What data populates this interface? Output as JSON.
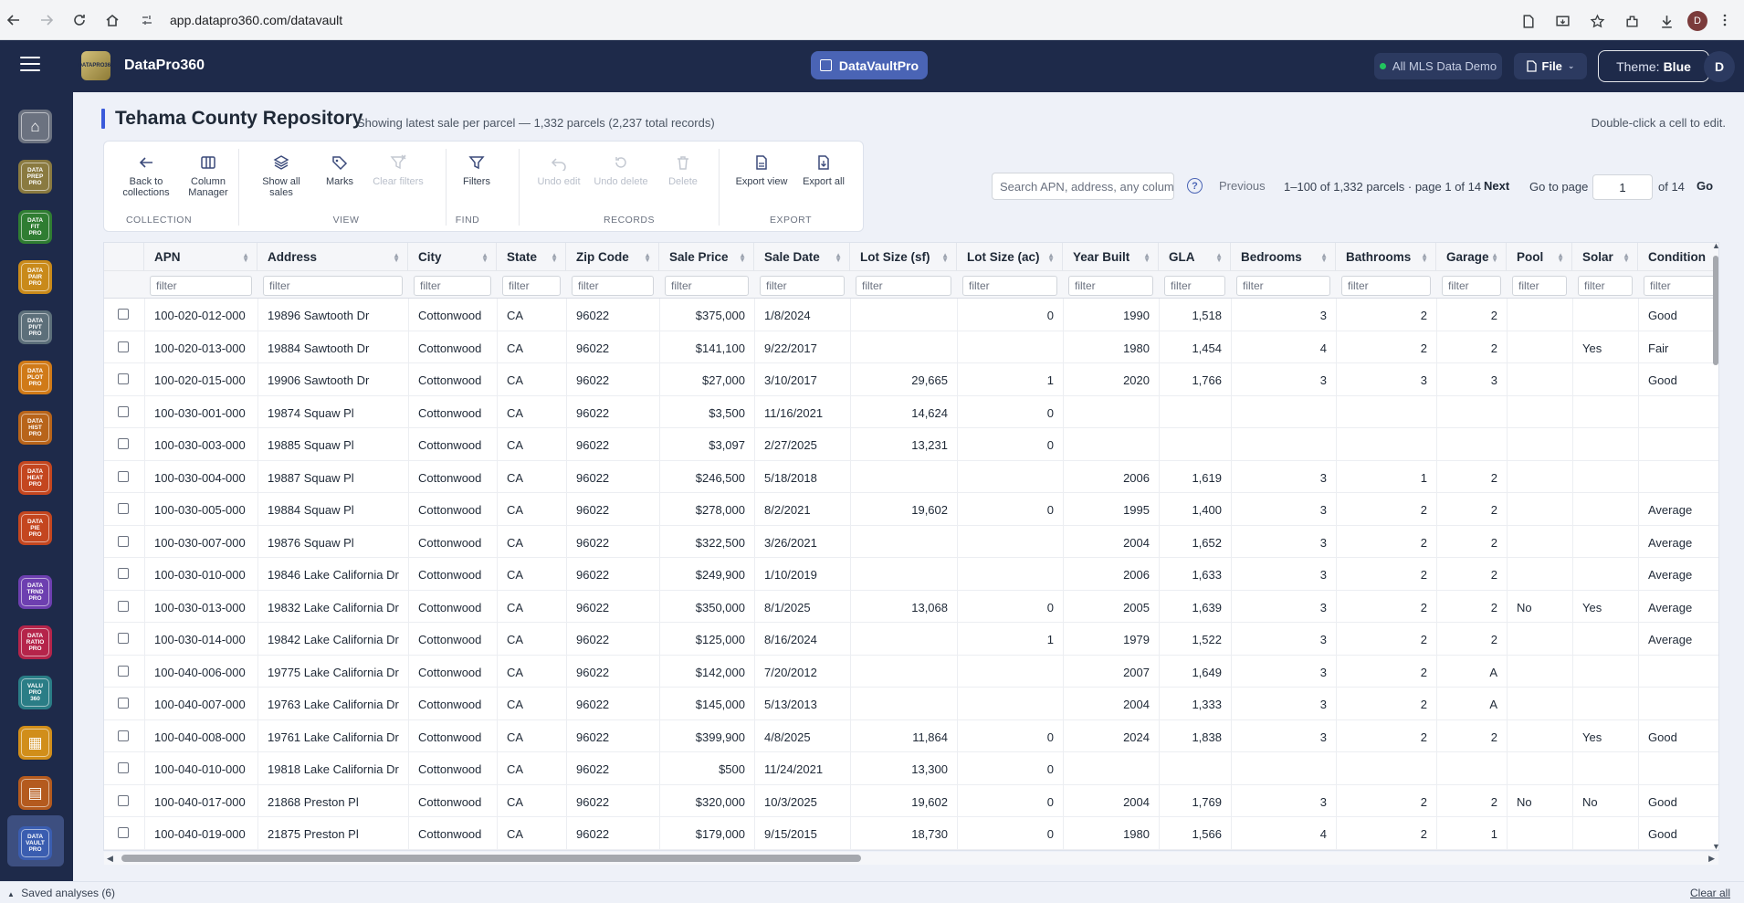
{
  "browser": {
    "url": "app.datapro360.com/datavault",
    "profile_initial": "D"
  },
  "header": {
    "brand_logo_text": "DATA PRO 360",
    "brand_name": "DataPro360",
    "center_pill": "DataVaultPro",
    "mls_status": "All MLS Data Demo",
    "file_menu": "File",
    "theme_label": "Theme:",
    "theme_value": "Blue",
    "user_initial": "D"
  },
  "sidebar": {
    "items": [
      {
        "name": "home",
        "lines": [
          "⌂"
        ],
        "bg": "#6b7280",
        "fg": "#ffffff"
      },
      {
        "name": "data-prep-pro",
        "lines": [
          "DATA",
          "PREP",
          "PRO"
        ],
        "bg": "#8a7a40",
        "fg": "#ffffff"
      },
      {
        "name": "data-fit-pro",
        "lines": [
          "DATA",
          "FIT",
          "PRO"
        ],
        "bg": "#2f7d32",
        "fg": "#ffffff"
      },
      {
        "name": "data-pair-pro",
        "lines": [
          "DATA",
          "PAIR",
          "PRO"
        ],
        "bg": "#c98a1a",
        "fg": "#ffffff"
      },
      {
        "name": "data-pivt-pro",
        "lines": [
          "DATA",
          "PIVT",
          "PRO"
        ],
        "bg": "#5c6f7a",
        "fg": "#ffffff"
      },
      {
        "name": "data-plot-pro",
        "lines": [
          "DATA",
          "PLOT",
          "PRO"
        ],
        "bg": "#d07a18",
        "fg": "#ffffff"
      },
      {
        "name": "data-hist-pro",
        "lines": [
          "DATA",
          "HIST",
          "PRO"
        ],
        "bg": "#b8641a",
        "fg": "#ffffff"
      },
      {
        "name": "data-heat-pro",
        "lines": [
          "DATA",
          "HEAT",
          "PRO"
        ],
        "bg": "#c4461f",
        "fg": "#ffffff"
      },
      {
        "name": "data-pie-pro",
        "lines": [
          "DATA",
          "PIE",
          "PRO"
        ],
        "bg": "#c4461f",
        "fg": "#ffffff"
      },
      {
        "name": "data-trnd-pro",
        "lines": [
          "DATA",
          "TRND",
          "PRO"
        ],
        "bg": "#6d3fb0",
        "fg": "#ffffff"
      },
      {
        "name": "data-ratio-pro",
        "lines": [
          "DATA",
          "RATIO",
          "PRO"
        ],
        "bg": "#b5244a",
        "fg": "#ffffff"
      },
      {
        "name": "valu-pro-360",
        "lines": [
          "VALU",
          "PRO",
          "360"
        ],
        "bg": "#2a7d86",
        "fg": "#ffffff"
      },
      {
        "name": "grid-app",
        "lines": [
          "▦"
        ],
        "bg": "#d18e1a",
        "fg": "#ffffff"
      },
      {
        "name": "report-app",
        "lines": [
          "▤"
        ],
        "bg": "#b45a1e",
        "fg": "#ffffff"
      },
      {
        "name": "data-vault-pro",
        "lines": [
          "DATA",
          "VAULT",
          "PRO"
        ],
        "bg": "#3a5db0",
        "fg": "#ffffff"
      }
    ]
  },
  "page": {
    "title": "Tehama County Repository",
    "subtitle": "Showing latest sale per parcel — 1,332 parcels (2,237 total records)",
    "hint": "Double-click a cell to edit."
  },
  "toolbar": {
    "groups": [
      {
        "label": "COLLECTION",
        "buttons": [
          {
            "id": "back",
            "icon": "arrow-left-icon",
            "label": "Back to collections",
            "disabled": false
          },
          {
            "id": "columns",
            "icon": "columns-icon",
            "label": "Column Manager",
            "disabled": false
          }
        ]
      },
      {
        "label": "VIEW",
        "buttons": [
          {
            "id": "showall",
            "icon": "layers-icon",
            "label": "Show all sales",
            "disabled": false
          },
          {
            "id": "marks",
            "icon": "tag-icon",
            "label": "Marks",
            "disabled": false
          },
          {
            "id": "clearfilters",
            "icon": "filter-clear-icon",
            "label": "Clear filters",
            "disabled": true
          }
        ]
      },
      {
        "label": "FIND",
        "buttons": [
          {
            "id": "filters",
            "icon": "filter-icon",
            "label": "Filters",
            "disabled": false
          }
        ]
      },
      {
        "label": "RECORDS",
        "buttons": [
          {
            "id": "undoedit",
            "icon": "undo-icon",
            "label": "Undo edit",
            "disabled": true
          },
          {
            "id": "undodelete",
            "icon": "restore-icon",
            "label": "Undo delete",
            "disabled": true
          },
          {
            "id": "delete",
            "icon": "trash-icon",
            "label": "Delete",
            "disabled": true
          }
        ]
      },
      {
        "label": "EXPORT",
        "buttons": [
          {
            "id": "exportview",
            "icon": "export-view-icon",
            "label": "Export view",
            "disabled": false
          },
          {
            "id": "exportall",
            "icon": "export-all-icon",
            "label": "Export all",
            "disabled": false
          }
        ]
      }
    ]
  },
  "search": {
    "placeholder": "Search APN, address, any column",
    "help": "?"
  },
  "pagination": {
    "previous": "Previous",
    "info": "1–100 of 1,332 parcels · page 1 of 14",
    "next": "Next",
    "goto_label": "Go to page",
    "current_page": "1",
    "of_total": "of 14",
    "go": "Go"
  },
  "table": {
    "filter_placeholder": "filter",
    "columns": [
      "APN",
      "Address",
      "City",
      "State",
      "Zip Code",
      "Sale Price",
      "Sale Date",
      "Lot Size (sf)",
      "Lot Size (ac)",
      "Year Built",
      "GLA",
      "Bedrooms",
      "Bathrooms",
      "Garage",
      "Pool",
      "Solar",
      "Condition"
    ],
    "rows": [
      [
        "100-020-012-000",
        "19896 Sawtooth Dr",
        "Cottonwood",
        "CA",
        "96022",
        "$375,000",
        "1/8/2024",
        "",
        "0",
        "1990",
        "1,518",
        "3",
        "2",
        "2",
        "",
        "",
        "Good"
      ],
      [
        "100-020-013-000",
        "19884 Sawtooth Dr",
        "Cottonwood",
        "CA",
        "96022",
        "$141,100",
        "9/22/2017",
        "",
        "",
        "1980",
        "1,454",
        "4",
        "2",
        "2",
        "",
        "Yes",
        "Fair"
      ],
      [
        "100-020-015-000",
        "19906 Sawtooth Dr",
        "Cottonwood",
        "CA",
        "96022",
        "$27,000",
        "3/10/2017",
        "29,665",
        "1",
        "2020",
        "1,766",
        "3",
        "3",
        "3",
        "",
        "",
        "Good"
      ],
      [
        "100-030-001-000",
        "19874 Squaw Pl",
        "Cottonwood",
        "CA",
        "96022",
        "$3,500",
        "11/16/2021",
        "14,624",
        "0",
        "",
        "",
        "",
        "",
        "",
        "",
        "",
        ""
      ],
      [
        "100-030-003-000",
        "19885 Squaw Pl",
        "Cottonwood",
        "CA",
        "96022",
        "$3,097",
        "2/27/2025",
        "13,231",
        "0",
        "",
        "",
        "",
        "",
        "",
        "",
        "",
        ""
      ],
      [
        "100-030-004-000",
        "19887 Squaw Pl",
        "Cottonwood",
        "CA",
        "96022",
        "$246,500",
        "5/18/2018",
        "",
        "",
        "2006",
        "1,619",
        "3",
        "1",
        "2",
        "",
        "",
        ""
      ],
      [
        "100-030-005-000",
        "19884 Squaw Pl",
        "Cottonwood",
        "CA",
        "96022",
        "$278,000",
        "8/2/2021",
        "19,602",
        "0",
        "1995",
        "1,400",
        "3",
        "2",
        "2",
        "",
        "",
        "Average"
      ],
      [
        "100-030-007-000",
        "19876 Squaw Pl",
        "Cottonwood",
        "CA",
        "96022",
        "$322,500",
        "3/26/2021",
        "",
        "",
        "2004",
        "1,652",
        "3",
        "2",
        "2",
        "",
        "",
        "Average"
      ],
      [
        "100-030-010-000",
        "19846 Lake California Dr",
        "Cottonwood",
        "CA",
        "96022",
        "$249,900",
        "1/10/2019",
        "",
        "",
        "2006",
        "1,633",
        "3",
        "2",
        "2",
        "",
        "",
        "Average"
      ],
      [
        "100-030-013-000",
        "19832 Lake California Dr",
        "Cottonwood",
        "CA",
        "96022",
        "$350,000",
        "8/1/2025",
        "13,068",
        "0",
        "2005",
        "1,639",
        "3",
        "2",
        "2",
        "No",
        "Yes",
        "Average"
      ],
      [
        "100-030-014-000",
        "19842 Lake California Dr",
        "Cottonwood",
        "CA",
        "96022",
        "$125,000",
        "8/16/2024",
        "",
        "1",
        "1979",
        "1,522",
        "3",
        "2",
        "2",
        "",
        "",
        "Average"
      ],
      [
        "100-040-006-000",
        "19775 Lake California Dr",
        "Cottonwood",
        "CA",
        "96022",
        "$142,000",
        "7/20/2012",
        "",
        "",
        "2007",
        "1,649",
        "3",
        "2",
        "A",
        "",
        "",
        ""
      ],
      [
        "100-040-007-000",
        "19763 Lake California Dr",
        "Cottonwood",
        "CA",
        "96022",
        "$145,000",
        "5/13/2013",
        "",
        "",
        "2004",
        "1,333",
        "3",
        "2",
        "A",
        "",
        "",
        ""
      ],
      [
        "100-040-008-000",
        "19761 Lake California Dr",
        "Cottonwood",
        "CA",
        "96022",
        "$399,900",
        "4/8/2025",
        "11,864",
        "0",
        "2024",
        "1,838",
        "3",
        "2",
        "2",
        "",
        "Yes",
        "Good"
      ],
      [
        "100-040-010-000",
        "19818 Lake California Dr",
        "Cottonwood",
        "CA",
        "96022",
        "$500",
        "11/24/2021",
        "13,300",
        "0",
        "",
        "",
        "",
        "",
        "",
        "",
        "",
        ""
      ],
      [
        "100-040-017-000",
        "21868 Preston Pl",
        "Cottonwood",
        "CA",
        "96022",
        "$320,000",
        "10/3/2025",
        "19,602",
        "0",
        "2004",
        "1,769",
        "3",
        "2",
        "2",
        "No",
        "No",
        "Good"
      ],
      [
        "100-040-019-000",
        "21875 Preston Pl",
        "Cottonwood",
        "CA",
        "96022",
        "$179,000",
        "9/15/2015",
        "18,730",
        "0",
        "1980",
        "1,566",
        "4",
        "2",
        "1",
        "",
        "",
        "Good"
      ]
    ]
  },
  "footer": {
    "saved": "Saved analyses (6)",
    "clear_all": "Clear all"
  }
}
